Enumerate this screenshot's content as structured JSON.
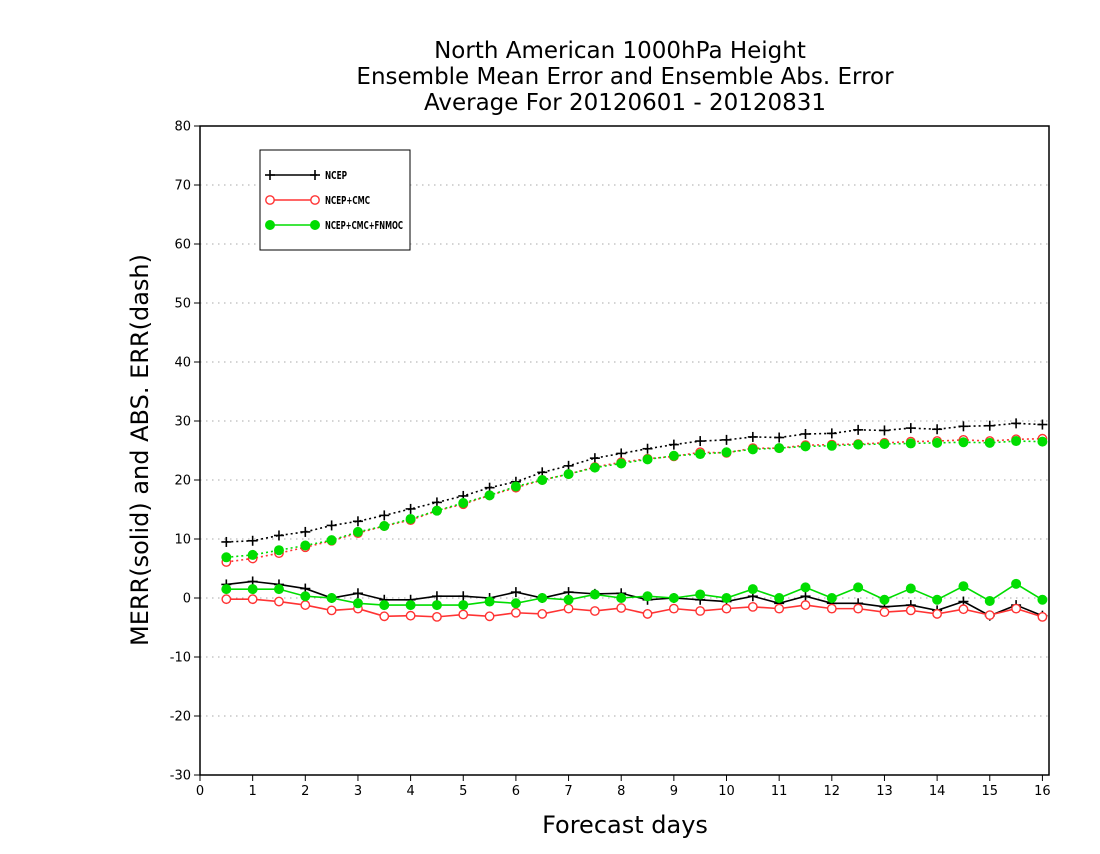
{
  "chart_data": {
    "type": "line",
    "title_lines": [
      "North American 1000hPa Height",
      "Ensemble Mean Error and Ensemble Abs. Error",
      "Average For 20120601 - 20120831"
    ],
    "xlabel": "Forecast days",
    "ylabel": "MERR(solid) and ABS. ERR(dash)",
    "xlim": [
      0,
      16.125
    ],
    "ylim": [
      -30,
      80
    ],
    "xticks": [
      0,
      1,
      2,
      3,
      4,
      5,
      6,
      7,
      8,
      9,
      10,
      11,
      12,
      13,
      14,
      15,
      16
    ],
    "yticks": [
      -30,
      -20,
      -10,
      0,
      10,
      20,
      30,
      40,
      50,
      60,
      70,
      80
    ],
    "grid": "horizontal dotted",
    "legend_position": "top-left",
    "x": [
      0.5,
      1.0,
      1.5,
      2.0,
      2.5,
      3.0,
      3.5,
      4.0,
      4.5,
      5.0,
      5.5,
      6.0,
      6.5,
      7.0,
      7.5,
      8.0,
      8.5,
      9.0,
      9.5,
      10.0,
      10.5,
      11.0,
      11.5,
      12.0,
      12.5,
      13.0,
      13.5,
      14.0,
      14.5,
      15.0,
      15.5,
      16.0
    ],
    "series": [
      {
        "name": "NCEP",
        "color": "#000000",
        "marker": "plus",
        "merr": [
          2.3,
          2.8,
          2.3,
          1.6,
          0.0,
          0.8,
          -0.3,
          -0.3,
          0.3,
          0.3,
          0.0,
          1.0,
          0.0,
          1.0,
          0.7,
          0.8,
          -0.3,
          0.0,
          -0.3,
          -0.6,
          0.3,
          -0.9,
          0.3,
          -0.9,
          -0.9,
          -1.5,
          -1.2,
          -2.1,
          -0.6,
          -3.0,
          -1.2,
          -3.0
        ],
        "abs_err": [
          9.5,
          9.7,
          10.6,
          11.2,
          12.3,
          13.0,
          14.0,
          15.1,
          16.2,
          17.3,
          18.7,
          19.7,
          21.3,
          22.4,
          23.7,
          24.5,
          25.3,
          26.0,
          26.6,
          26.8,
          27.3,
          27.2,
          27.8,
          27.9,
          28.5,
          28.4,
          28.8,
          28.6,
          29.1,
          29.2,
          29.6,
          29.4
        ]
      },
      {
        "name": "NCEP+CMC",
        "color": "#ff3333",
        "marker": "open-circle",
        "merr": [
          -0.2,
          -0.2,
          -0.6,
          -1.2,
          -2.1,
          -1.8,
          -3.1,
          -3.0,
          -3.2,
          -2.8,
          -3.1,
          -2.5,
          -2.7,
          -1.8,
          -2.2,
          -1.7,
          -2.7,
          -1.8,
          -2.2,
          -1.8,
          -1.5,
          -1.8,
          -1.2,
          -1.8,
          -1.8,
          -2.4,
          -2.1,
          -2.7,
          -1.9,
          -2.9,
          -1.8,
          -3.2
        ],
        "abs_err": [
          6.1,
          6.7,
          7.6,
          8.6,
          9.7,
          11.0,
          12.2,
          13.2,
          14.8,
          15.9,
          17.4,
          18.7,
          20.0,
          21.0,
          22.2,
          23.0,
          23.6,
          24.0,
          24.7,
          24.6,
          25.4,
          25.4,
          25.9,
          26.0,
          26.1,
          26.3,
          26.5,
          26.6,
          26.8,
          26.6,
          26.9,
          27.0
        ]
      },
      {
        "name": "NCEP+CMC+FNMOC",
        "color": "#00dd00",
        "marker": "filled-circle",
        "merr": [
          1.5,
          1.5,
          1.5,
          0.3,
          0.0,
          -0.9,
          -1.2,
          -1.2,
          -1.2,
          -1.2,
          -0.6,
          -0.9,
          0.0,
          -0.3,
          0.6,
          0.0,
          0.3,
          0.0,
          0.6,
          0.0,
          1.5,
          0.0,
          1.8,
          0.0,
          1.8,
          -0.3,
          1.6,
          -0.3,
          2.0,
          -0.5,
          2.4,
          -0.3
        ],
        "abs_err": [
          6.9,
          7.3,
          8.1,
          8.9,
          9.8,
          11.2,
          12.2,
          13.4,
          14.8,
          16.1,
          17.4,
          18.9,
          20.0,
          21.0,
          22.1,
          22.8,
          23.5,
          24.1,
          24.4,
          24.7,
          25.2,
          25.4,
          25.7,
          25.8,
          26.0,
          26.1,
          26.2,
          26.3,
          26.4,
          26.3,
          26.6,
          26.5
        ]
      }
    ]
  }
}
